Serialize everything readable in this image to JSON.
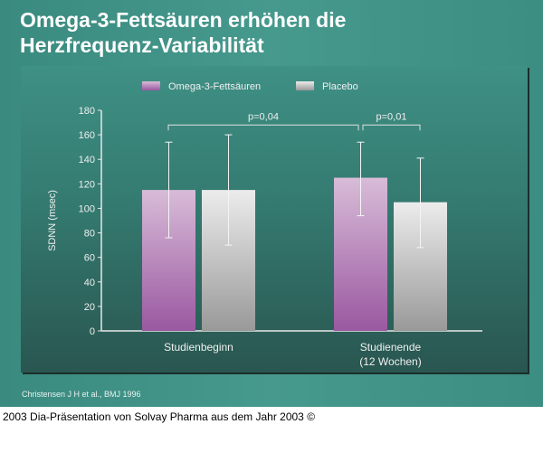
{
  "title_lines": [
    "Omega-3-Fettsäuren erhöhen die",
    "Herzfrequenz-Variabilität"
  ],
  "citation": "Christensen J H et al., BMJ 1996",
  "footer": "2003 Dia-Präsentation von Solvay Pharma aus dem Jahr 2003 ©",
  "chart_data": {
    "type": "bar",
    "ylabel": "SDNN (msec)",
    "ylim": [
      0,
      180
    ],
    "yticks": [
      0,
      20,
      40,
      60,
      80,
      100,
      120,
      140,
      160,
      180
    ],
    "categories": [
      "Studienbeginn",
      "Studienende\n(12 Wochen)"
    ],
    "category_lines": [
      [
        "Studienbeginn"
      ],
      [
        "Studienende",
        "(12 Wochen)"
      ]
    ],
    "series": [
      {
        "name": "Omega-3-Fettsäuren",
        "values": [
          115,
          125
        ],
        "err_low": [
          76,
          94
        ],
        "err_high": [
          154,
          154
        ],
        "color_top": "#d8bcd8",
        "color_bottom": "#9a58a0"
      },
      {
        "name": "Placebo",
        "values": [
          115,
          105
        ],
        "err_low": [
          70,
          68
        ],
        "err_high": [
          160,
          141
        ],
        "color_top": "#ececec",
        "color_bottom": "#999999"
      }
    ],
    "legend_position": "top",
    "annotations": [
      {
        "text": "p=0,04",
        "from": "Studienbeginn Omega-3-Fettsäuren",
        "to": "Studienende Omega-3-Fettsäuren"
      },
      {
        "text": "p=0,01",
        "from": "Studienende Omega-3-Fettsäuren",
        "to": "Studienende Placebo"
      }
    ],
    "grid": false
  }
}
